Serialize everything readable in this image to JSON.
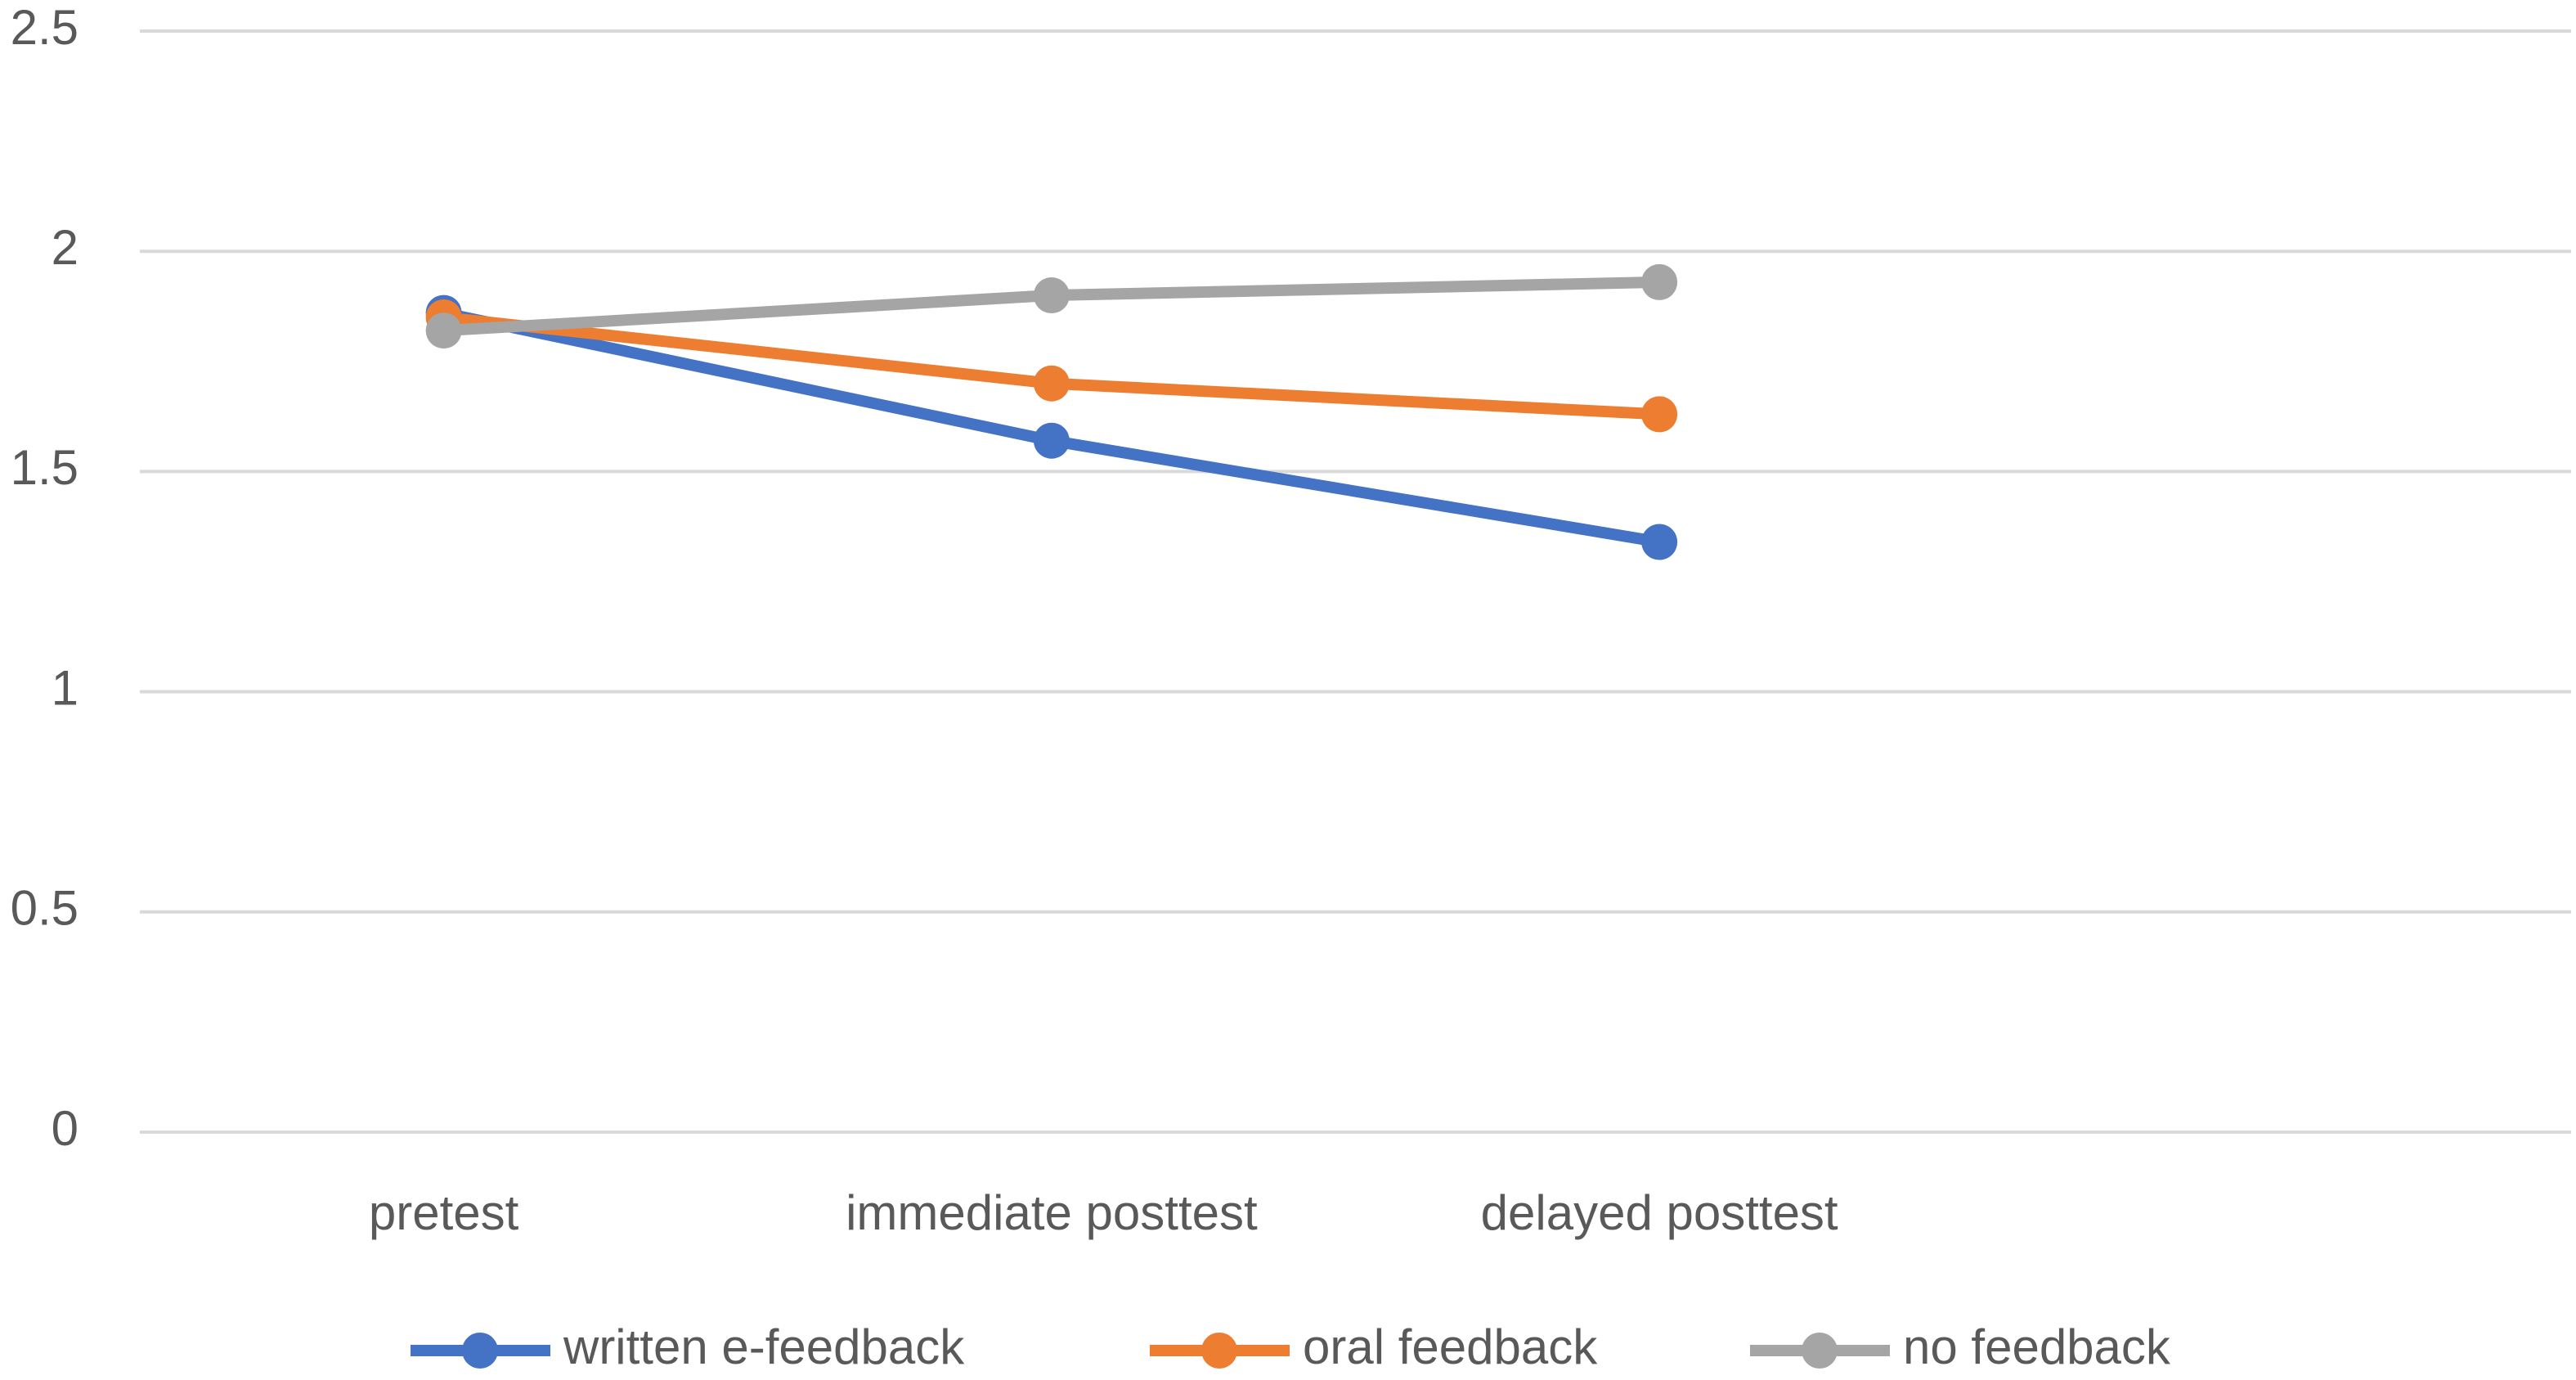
{
  "chart_data": {
    "type": "line",
    "categories": [
      "pretest",
      "immediate posttest",
      "delayed posttest",
      null
    ],
    "series": [
      {
        "name": "written e-feedback",
        "color": "#4472c4",
        "values": [
          1.86,
          1.57,
          1.34,
          null
        ]
      },
      {
        "name": "oral feedback",
        "color": "#ed7d31",
        "values": [
          1.85,
          1.7,
          1.63,
          null
        ]
      },
      {
        "name": "no feedback",
        "color": "#a5a5a5",
        "values": [
          1.82,
          1.9,
          1.93,
          null
        ]
      }
    ],
    "ylim": [
      0,
      2.5
    ],
    "yticks": [
      0,
      0.5,
      1,
      1.5,
      2,
      2.5
    ],
    "grid": true,
    "legend": "bottom"
  }
}
